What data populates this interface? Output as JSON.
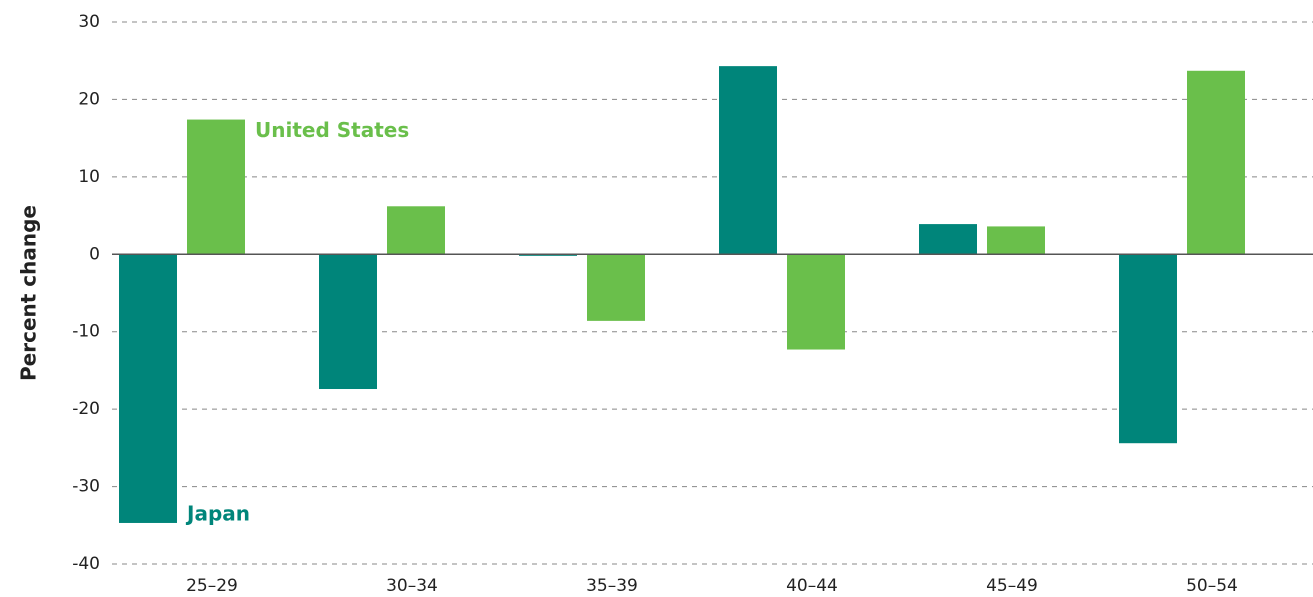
{
  "chart_data": {
    "type": "bar",
    "y_label": "Percent change",
    "categories": [
      "25–29",
      "30–34",
      "35–39",
      "40–44",
      "45–49",
      "50–54"
    ],
    "series": [
      {
        "name": "Japan",
        "color": "#00857a",
        "values": [
          -34.7,
          -17.4,
          -0.2,
          24.3,
          3.9,
          -24.4
        ]
      },
      {
        "name": "United States",
        "color": "#6abf4b",
        "values": [
          17.4,
          6.2,
          -8.6,
          -12.3,
          3.6,
          23.7
        ]
      }
    ],
    "ylim": [
      -40,
      30
    ],
    "yticks": [
      -40,
      -30,
      -20,
      -10,
      0,
      10,
      20,
      30
    ],
    "grid": true
  }
}
